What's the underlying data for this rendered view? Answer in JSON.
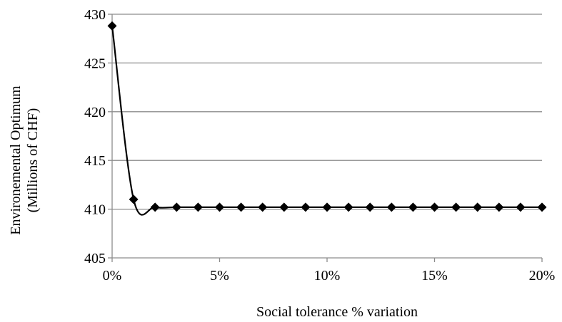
{
  "chart_data": {
    "type": "line",
    "title": "",
    "xlabel": "Social tolerance % variation",
    "ylabel_lines": [
      "Environemental Optimum",
      "(Millions of CHF)"
    ],
    "x_unit": "percent",
    "xlim": [
      0,
      20
    ],
    "ylim": [
      405,
      430
    ],
    "x_ticks": [
      0,
      5,
      10,
      15,
      20
    ],
    "x_tick_labels": [
      "0%",
      "5%",
      "10%",
      "15%",
      "20%"
    ],
    "y_ticks": [
      405,
      410,
      415,
      420,
      425,
      430
    ],
    "y_tick_labels": [
      "405",
      "410",
      "415",
      "420",
      "425",
      "430"
    ],
    "grid": "horizontal",
    "legend": "none",
    "marker": "diamond",
    "line_style": "smooth",
    "series": [
      {
        "x": [
          0,
          1,
          2,
          3,
          4,
          5,
          6,
          7,
          8,
          9,
          10,
          11,
          12,
          13,
          14,
          15,
          16,
          17,
          18,
          19,
          20
        ],
        "values": [
          428.8,
          411.0,
          410.2,
          410.2,
          410.2,
          410.2,
          410.2,
          410.2,
          410.2,
          410.2,
          410.2,
          410.2,
          410.2,
          410.2,
          410.2,
          410.2,
          410.2,
          410.2,
          410.2,
          410.2,
          410.2
        ]
      }
    ],
    "colors": {
      "series": "#000000",
      "grid": "#8c8c8c",
      "axis": "#8c8c8c"
    }
  }
}
